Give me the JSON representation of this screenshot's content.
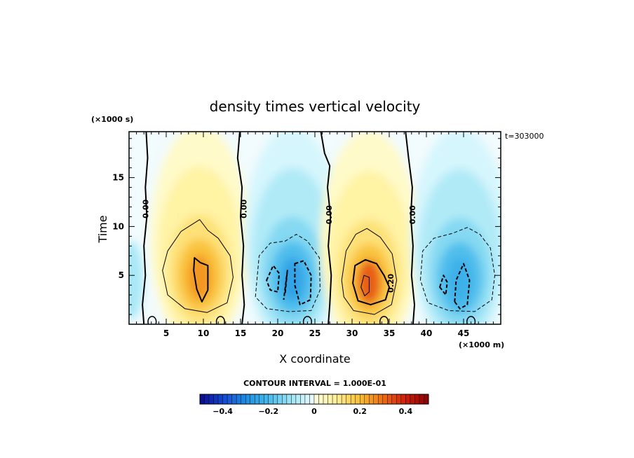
{
  "chart_data": {
    "type": "heatmap",
    "title": "density times vertical velocity",
    "xlabel": "X coordinate",
    "ylabel": "Time",
    "x_unit": "(×1000 m)",
    "y_unit": "(×1000 s)",
    "xlim": [
      0,
      50
    ],
    "ylim": [
      0,
      19.7
    ],
    "x_ticks": [
      5,
      10,
      15,
      20,
      25,
      30,
      35,
      40,
      45
    ],
    "y_ticks": [
      5,
      10,
      15
    ],
    "time_stamp": "t=303000",
    "contour_interval_label": "CONTOUR INTERVAL = 1.000E-01",
    "contour_labels": [
      {
        "text": "0.00",
        "x": 2.3,
        "y": 11.8
      },
      {
        "text": "0.00",
        "x": 15.5,
        "y": 11.8
      },
      {
        "text": "0.00",
        "x": 27.0,
        "y": 11.2
      },
      {
        "text": "0.00",
        "x": 38.2,
        "y": 11.2
      },
      {
        "text": "0.20",
        "x": 35.3,
        "y": 4.2
      }
    ],
    "field_features": [
      {
        "sign": "positive",
        "center_x": 9.5,
        "center_y": 4.8,
        "peak": 0.25
      },
      {
        "sign": "negative",
        "center_x": 22.0,
        "center_y": 4.6,
        "peak": -0.25
      },
      {
        "sign": "positive",
        "center_x": 32.3,
        "center_y": 4.3,
        "peak": 0.32
      },
      {
        "sign": "negative",
        "center_x": 44.5,
        "center_y": 4.5,
        "peak": -0.22
      }
    ],
    "colorbar": {
      "min": -0.5,
      "max": 0.5,
      "tick_values": [
        -0.4,
        -0.2,
        0,
        0.2,
        0.4
      ],
      "tick_labels": [
        "−0.4",
        "−0.2",
        "0",
        "0.2",
        "0.4"
      ]
    }
  }
}
